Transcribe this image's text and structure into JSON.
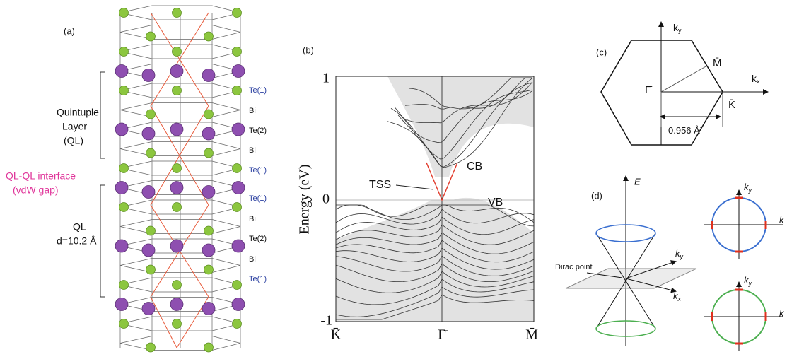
{
  "panel_a": {
    "label": "(a)",
    "quintuple": [
      "Quintuple",
      "Layer",
      "(QL)"
    ],
    "interface": [
      "QL-QL interface",
      "(vdW gap)"
    ],
    "ql": [
      "QL",
      "d=10.2 Å"
    ],
    "layers": [
      "Te(1)",
      "Bi",
      "Te(2)",
      "Bi",
      "Te(1)",
      "Te(1)",
      "Bi",
      "Te(2)",
      "Bi",
      "Te(1)"
    ]
  },
  "panel_b": {
    "label": "(b)",
    "y_axis_label": "Energy (eV)",
    "yticks": [
      "1",
      "0",
      "-1"
    ],
    "xticks": [
      "K̄",
      "Γ̄",
      "M̄"
    ],
    "annotations": [
      "TSS",
      "CB",
      "VB"
    ]
  },
  "panel_c": {
    "label": "(c)",
    "ky": {
      "base": "k",
      "sub": "y"
    },
    "kx": {
      "base": "k",
      "sub": "x"
    },
    "gamma": "Γ̄",
    "m": "M̄",
    "k": "K̄",
    "distance": {
      "base": "0.956 Å",
      "sup": "-1"
    }
  },
  "panel_d": {
    "label": "(d)",
    "e_axis": "E",
    "dirac_point": "Dirac point",
    "cone_ky": {
      "base": "k",
      "sub": "y"
    },
    "cone_kx": {
      "base": "k",
      "sub": "x"
    },
    "upper_ky": {
      "base": "k",
      "sub": "y"
    },
    "upper_kx": "k",
    "lower_ky": {
      "base": "k",
      "sub": "y"
    },
    "lower_kx": "k"
  }
}
